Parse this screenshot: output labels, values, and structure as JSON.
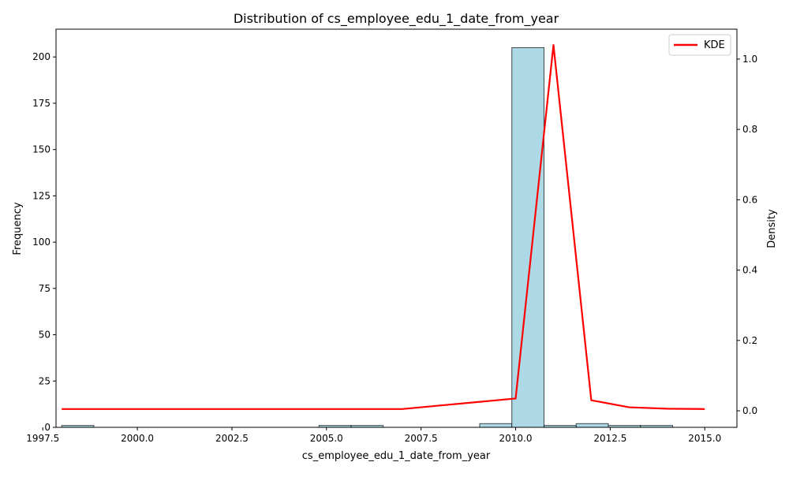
{
  "chart_data": {
    "type": "bar",
    "title": "Distribution of cs_employee_edu_1_date_from_year",
    "xlabel": "cs_employee_edu_1_date_from_year",
    "ylabel": "Frequency",
    "y2label": "Density",
    "xlim": [
      1997.85,
      2015.85
    ],
    "ylim": [
      0,
      215
    ],
    "y2lim": [
      -0.047,
      1.085
    ],
    "x_ticks": [
      1997.5,
      2000.0,
      2002.5,
      2005.0,
      2007.5,
      2010.0,
      2012.5,
      2015.0
    ],
    "x_tick_labels": [
      "1997.5",
      "2000.0",
      "2002.5",
      "2005.0",
      "2007.5",
      "2010.0",
      "2012.5",
      "2015.0"
    ],
    "y_ticks": [
      0,
      25,
      50,
      75,
      100,
      125,
      150,
      175,
      200
    ],
    "y_tick_labels": [
      "0",
      "25",
      "50",
      "75",
      "100",
      "125",
      "150",
      "175",
      "200"
    ],
    "y2_ticks": [
      0.0,
      0.2,
      0.4,
      0.6,
      0.8,
      1.0
    ],
    "y2_tick_labels": [
      "0.0",
      "0.2",
      "0.4",
      "0.6",
      "0.8",
      "1.0"
    ],
    "histogram": {
      "bin_start": 1998,
      "bin_width": 0.85,
      "counts": [
        1,
        0,
        0,
        0,
        0,
        0,
        0,
        0,
        1,
        1,
        0,
        0,
        0,
        2,
        205,
        1,
        2,
        1,
        1
      ],
      "fill_color": "#add8e6",
      "edge_color": "#000000"
    },
    "series": [
      {
        "name": "KDE",
        "color": "#ff0000",
        "x": [
          1998,
          1999,
          2000,
          2001,
          2002,
          2003,
          2004,
          2005,
          2006,
          2007,
          2008,
          2009,
          2010,
          2011,
          2012,
          2013,
          2014,
          2015
        ],
        "y": [
          0.005,
          0.005,
          0.005,
          0.005,
          0.005,
          0.005,
          0.005,
          0.005,
          0.005,
          0.005,
          0.015,
          0.025,
          0.035,
          1.04,
          0.03,
          0.01,
          0.006,
          0.005
        ]
      }
    ],
    "legend": {
      "position": "top-right"
    },
    "grid": false
  }
}
